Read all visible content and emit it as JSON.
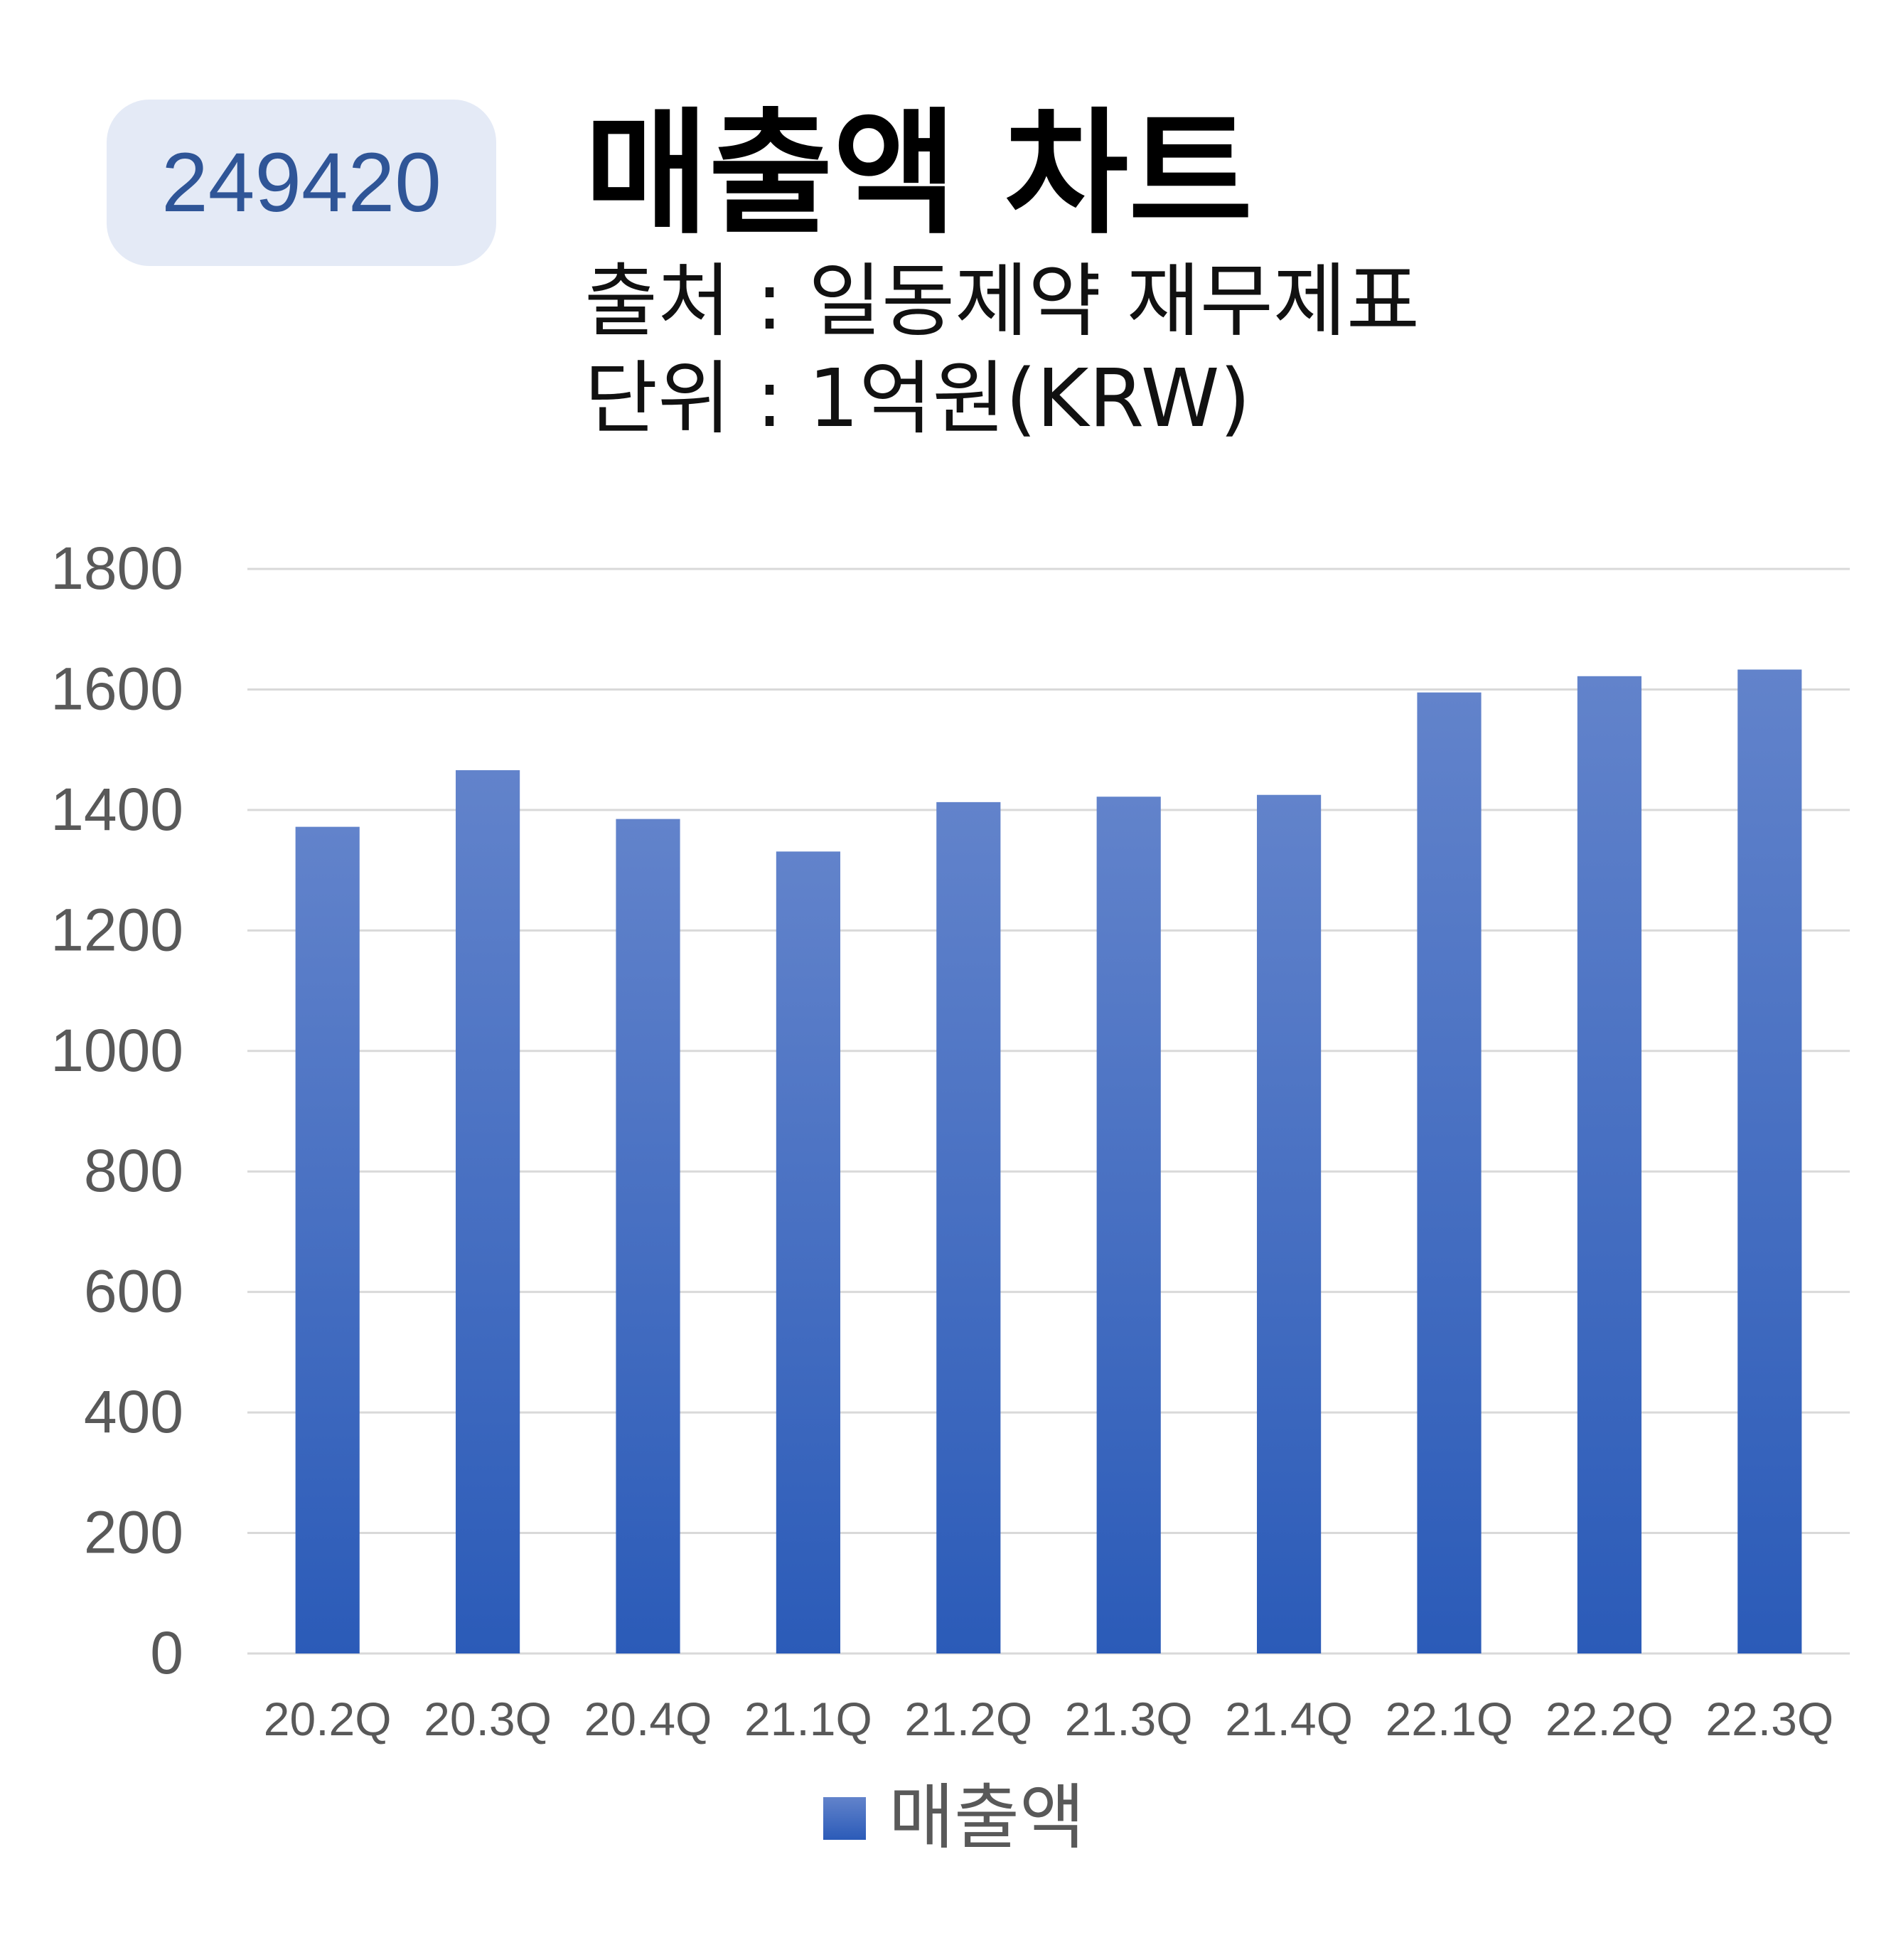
{
  "badge": {
    "code": "249420"
  },
  "header": {
    "title": "매출액 차트",
    "source": "출처 : 일동제약 재무제표",
    "unit": "단위 : 1억원(KRW)"
  },
  "colors": {
    "bar_top": "#6283cb",
    "bar_bottom": "#2b5bb8",
    "grid": "#d9d9d9",
    "tick_text": "#595959",
    "badge_bg": "#e4eaf6",
    "badge_text": "#2f5597"
  },
  "chart_data": {
    "type": "bar",
    "categories": [
      "20.2Q",
      "20.3Q",
      "20.4Q",
      "21.1Q",
      "21.2Q",
      "21.3Q",
      "21.4Q",
      "22.1Q",
      "22.2Q",
      "22.3Q"
    ],
    "series": [
      {
        "name": "매출액",
        "values": [
          1372,
          1466,
          1385,
          1331,
          1413,
          1422,
          1425,
          1595,
          1622,
          1633
        ]
      }
    ],
    "ylim": [
      0,
      1800
    ],
    "yticks": [
      0,
      200,
      400,
      600,
      800,
      1000,
      1200,
      1400,
      1600,
      1800
    ],
    "grid": true,
    "legend": "bottom"
  }
}
